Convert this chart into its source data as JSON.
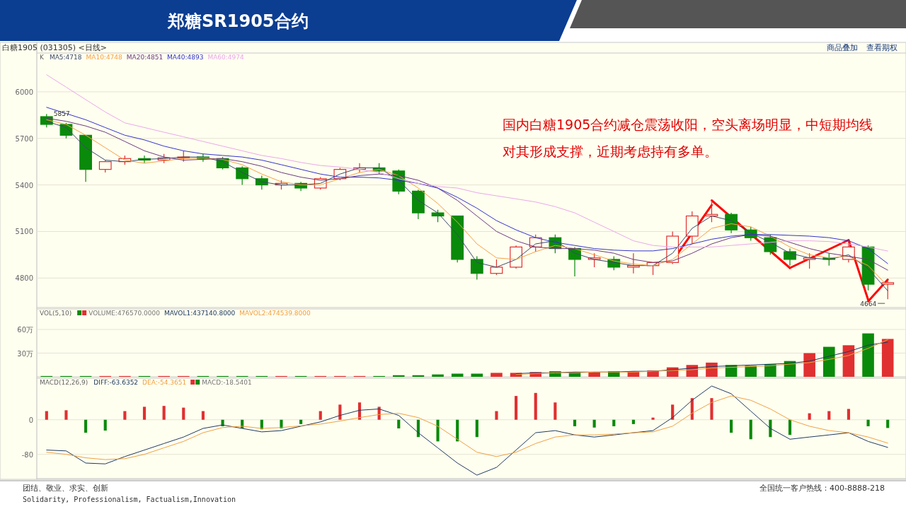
{
  "chart_data": [
    {
      "type": "candlestick",
      "title": "郑糖SR1905合约",
      "subtitle": "白糖1905 (031305) <日线>",
      "legend_title": "K",
      "legend": "top left",
      "grid": "y",
      "categories": [
        null,
        null,
        null,
        null,
        null,
        null,
        null,
        null,
        null,
        null,
        null,
        null,
        null,
        null,
        null,
        null,
        null,
        null,
        null,
        null,
        null,
        null,
        null,
        null,
        null,
        null,
        null,
        null,
        null,
        null,
        null,
        null,
        null,
        null,
        null,
        null,
        null,
        null,
        null,
        null,
        null,
        null,
        null,
        null
      ],
      "ohlc": [
        [
          5840,
          5857,
          5770,
          5790
        ],
        [
          5790,
          5800,
          5700,
          5720
        ],
        [
          5720,
          5720,
          5420,
          5500
        ],
        [
          5500,
          5560,
          5480,
          5550
        ],
        [
          5550,
          5590,
          5530,
          5570
        ],
        [
          5570,
          5590,
          5540,
          5560
        ],
        [
          5560,
          5600,
          5540,
          5575
        ],
        [
          5575,
          5620,
          5550,
          5580
        ],
        [
          5580,
          5600,
          5550,
          5570
        ],
        [
          5570,
          5580,
          5500,
          5510
        ],
        [
          5510,
          5520,
          5400,
          5440
        ],
        [
          5440,
          5460,
          5370,
          5400
        ],
        [
          5400,
          5430,
          5370,
          5410
        ],
        [
          5410,
          5420,
          5360,
          5380
        ],
        [
          5380,
          5450,
          5370,
          5440
        ],
        [
          5440,
          5510,
          5430,
          5500
        ],
        [
          5500,
          5540,
          5480,
          5510
        ],
        [
          5510,
          5540,
          5470,
          5490
        ],
        [
          5490,
          5500,
          5340,
          5360
        ],
        [
          5360,
          5370,
          5180,
          5220
        ],
        [
          5220,
          5240,
          5160,
          5200
        ],
        [
          5200,
          5200,
          4900,
          4920
        ],
        [
          4920,
          4940,
          4790,
          4830
        ],
        [
          4830,
          4920,
          4820,
          4870
        ],
        [
          4870,
          5010,
          4860,
          5000
        ],
        [
          5000,
          5080,
          4970,
          5060
        ],
        [
          5060,
          5080,
          4960,
          4990
        ],
        [
          4990,
          5000,
          4810,
          4920
        ],
        [
          4920,
          4960,
          4870,
          4930
        ],
        [
          4920,
          4940,
          4850,
          4870
        ],
        [
          4870,
          4960,
          4830,
          4880
        ],
        [
          4880,
          4900,
          4820,
          4900
        ],
        [
          4900,
          5100,
          4890,
          5070
        ],
        [
          5070,
          5230,
          5020,
          5200
        ],
        [
          5200,
          5290,
          5160,
          5210
        ],
        [
          5210,
          5220,
          5090,
          5110
        ],
        [
          5110,
          5130,
          5040,
          5060
        ],
        [
          5060,
          5080,
          4950,
          4970
        ],
        [
          4970,
          4990,
          4880,
          4920
        ],
        [
          4920,
          4960,
          4860,
          4930
        ],
        [
          4930,
          4960,
          4880,
          4920
        ],
        [
          4920,
          5040,
          4900,
          5000
        ],
        [
          5000,
          5010,
          4720,
          4760
        ],
        [
          4760,
          4790,
          4664,
          4770
        ]
      ],
      "series": [
        {
          "name": "MA5:4718",
          "type": "line",
          "color": "#3b4a6b",
          "values": [
            5810,
            5770,
            5640,
            5560,
            5550,
            5565,
            5570,
            5580,
            5580,
            5550,
            5480,
            5420,
            5400,
            5400,
            5410,
            5470,
            5510,
            5510,
            5430,
            5300,
            5220,
            5080,
            4900,
            4870,
            4920,
            5020,
            5040,
            4960,
            4920,
            4900,
            4880,
            4880,
            4960,
            5120,
            5200,
            5170,
            5090,
            5030,
            4960,
            4930,
            4920,
            4950,
            4860,
            4718
          ]
        },
        {
          "name": "MA10:4748",
          "type": "line",
          "color": "#f5a142",
          "values": [
            5820,
            5790,
            5720,
            5640,
            5560,
            5540,
            5555,
            5570,
            5575,
            5565,
            5530,
            5470,
            5420,
            5400,
            5400,
            5440,
            5480,
            5500,
            5460,
            5380,
            5280,
            5160,
            5020,
            4930,
            4920,
            4970,
            5010,
            4990,
            4950,
            4910,
            4890,
            4880,
            4920,
            5020,
            5120,
            5150,
            5130,
            5070,
            5000,
            4950,
            4930,
            4940,
            4880,
            4748
          ]
        },
        {
          "name": "MA20:4851",
          "type": "line",
          "color": "#6a3a7f",
          "values": [
            5830,
            5810,
            5780,
            5740,
            5680,
            5620,
            5580,
            5560,
            5565,
            5570,
            5550,
            5520,
            5480,
            5450,
            5430,
            5440,
            5460,
            5470,
            5460,
            5430,
            5380,
            5300,
            5200,
            5100,
            5040,
            5000,
            4990,
            4990,
            4980,
            4960,
            4920,
            4900,
            4910,
            4960,
            5020,
            5060,
            5080,
            5070,
            5030,
            4990,
            4960,
            4940,
            4920,
            4851
          ]
        },
        {
          "name": "MA40:4893",
          "type": "line",
          "color": "#3333cc",
          "values": [
            5900,
            5860,
            5820,
            5770,
            5720,
            5690,
            5650,
            5620,
            5600,
            5590,
            5580,
            5560,
            5530,
            5500,
            5470,
            5450,
            5450,
            5445,
            5430,
            5410,
            5380,
            5320,
            5250,
            5170,
            5110,
            5060,
            5030,
            5010,
            4990,
            4980,
            4975,
            4975,
            4990,
            5020,
            5050,
            5070,
            5080,
            5080,
            5075,
            5070,
            5060,
            5040,
            4990,
            4893
          ]
        },
        {
          "name": "MA60:4974",
          "type": "line",
          "color": "#e9a8ea",
          "values": [
            6110,
            6030,
            5950,
            5870,
            5800,
            5770,
            5740,
            5710,
            5680,
            5650,
            5620,
            5590,
            5570,
            5545,
            5525,
            5515,
            5500,
            5480,
            5440,
            5410,
            5390,
            5380,
            5350,
            5330,
            5310,
            5290,
            5260,
            5220,
            5160,
            5100,
            5040,
            5010,
            5000,
            5000,
            5000,
            5010,
            5020,
            5030,
            5040,
            5040,
            5035,
            5020,
            5000,
            4974
          ]
        },
        {
          "type": "line",
          "color": "#ff0000",
          "values": [
            null,
            null,
            null,
            null,
            null,
            null,
            null,
            null,
            null,
            null,
            null,
            null,
            null,
            null,
            null,
            null,
            null,
            null,
            null,
            null,
            null,
            null,
            null,
            null,
            null,
            null,
            null,
            null,
            null,
            null,
            null,
            null,
            4910,
            null,
            5270,
            null,
            null,
            null,
            null,
            null,
            null,
            null,
            null,
            null
          ]
        },
        {
          "type": "line",
          "color": "#ff0000",
          "values": [
            null,
            null,
            null,
            null,
            null,
            null,
            null,
            null,
            null,
            null,
            null,
            null,
            null,
            null,
            null,
            null,
            null,
            null,
            null,
            null,
            null,
            null,
            null,
            null,
            null,
            null,
            null,
            null,
            null,
            null,
            null,
            null,
            null,
            null,
            5300,
            null,
            null,
            null,
            4865,
            null,
            null,
            null,
            null,
            null
          ]
        },
        {
          "type": "line",
          "color": "#ff0000",
          "values": [
            null,
            null,
            null,
            null,
            null,
            null,
            null,
            null,
            null,
            null,
            null,
            null,
            null,
            null,
            null,
            null,
            null,
            null,
            null,
            null,
            null,
            null,
            null,
            null,
            null,
            null,
            null,
            null,
            null,
            null,
            null,
            null,
            null,
            null,
            null,
            null,
            null,
            null,
            4865,
            null,
            null,
            5045,
            4660,
            null
          ]
        },
        {
          "type": "line",
          "color": "#ff0000",
          "values": [
            null,
            null,
            null,
            null,
            null,
            null,
            null,
            null,
            null,
            null,
            null,
            null,
            null,
            null,
            null,
            null,
            null,
            null,
            null,
            null,
            null,
            null,
            null,
            null,
            null,
            null,
            null,
            null,
            null,
            null,
            null,
            null,
            null,
            null,
            null,
            null,
            null,
            null,
            null,
            null,
            null,
            null,
            4650,
            4790
          ]
        }
      ],
      "ylim": [
        4610,
        6250
      ],
      "yticks": [
        4800,
        5100,
        5400,
        5700,
        6000
      ],
      "annotations": [
        "国内白糖1905合约减仓震荡收阳，空头离场明显，中短期均线对其形成支撑，近期考虑持有多单。",
        {
          "text": "5857",
          "y": 5857
        },
        {
          "text": "4664",
          "y": 4664
        },
        "商品叠加",
        "查看期权",
        "团结、敬业、求实、创新",
        "Solidarity, Professionalism, Factualism,Innovation",
        "全国统一客户热线：400-8888-218"
      ]
    },
    {
      "type": "bar",
      "legend_title": "VOL(5,10)",
      "legend": "top left",
      "grid": "y",
      "categories": [
        null,
        null,
        null,
        null,
        null,
        null,
        null,
        null,
        null,
        null,
        null,
        null,
        null,
        null,
        null,
        null,
        null,
        null,
        null,
        null,
        null,
        null,
        null,
        null,
        null,
        null,
        null,
        null,
        null,
        null,
        null,
        null,
        null,
        null,
        null,
        null,
        null,
        null,
        null,
        null,
        null,
        null,
        null,
        null
      ],
      "series": [
        {
          "name": "VOLUME:476570.0000",
          "values": [
            1,
            1,
            1,
            1,
            1,
            1,
            1,
            1,
            1,
            1,
            1,
            1,
            1,
            1,
            1,
            1,
            1,
            1,
            2,
            2,
            3,
            4,
            4,
            5,
            5,
            6,
            7,
            6,
            6,
            7,
            7,
            8,
            12,
            15,
            18,
            15,
            14,
            16,
            20,
            30,
            38,
            40,
            55,
            48
          ],
          "colors": [
            "#0a8a0a",
            "#0a8a0a",
            "#0a8a0a",
            "#e03030",
            "#e03030",
            "#0a8a0a",
            "#e03030",
            "#e03030",
            "#0a8a0a",
            "#0a8a0a",
            "#0a8a0a",
            "#0a8a0a",
            "#e03030",
            "#0a8a0a",
            "#e03030",
            "#e03030",
            "#e03030",
            "#0a8a0a",
            "#0a8a0a",
            "#0a8a0a",
            "#0a8a0a",
            "#0a8a0a",
            "#0a8a0a",
            "#e03030",
            "#e03030",
            "#e03030",
            "#0a8a0a",
            "#0a8a0a",
            "#e03030",
            "#0a8a0a",
            "#e03030",
            "#e03030",
            "#e03030",
            "#e03030",
            "#e03030",
            "#0a8a0a",
            "#0a8a0a",
            "#0a8a0a",
            "#0a8a0a",
            "#e03030",
            "#0a8a0a",
            "#e03030",
            "#0a8a0a",
            "#e03030"
          ]
        },
        {
          "name": "MAVOL1:437140.8000",
          "type": "line",
          "color": "#1f3a60",
          "values": [
            null,
            null,
            null,
            null,
            null,
            null,
            null,
            null,
            null,
            null,
            null,
            null,
            null,
            null,
            null,
            null,
            null,
            null,
            null,
            null,
            null,
            null,
            null,
            null,
            4,
            5,
            5,
            6,
            6,
            6,
            7,
            7,
            9,
            11,
            13,
            14,
            15,
            16,
            17,
            20,
            26,
            32,
            40,
            44
          ]
        },
        {
          "name": "MAVOL2:474539.8000",
          "type": "line",
          "color": "#f0a040",
          "values": [
            null,
            null,
            null,
            null,
            null,
            null,
            null,
            null,
            null,
            null,
            null,
            null,
            null,
            null,
            null,
            null,
            null,
            null,
            null,
            null,
            null,
            null,
            null,
            null,
            3,
            4,
            5,
            5,
            6,
            6,
            6,
            7,
            8,
            9,
            11,
            12,
            13,
            14,
            16,
            18,
            22,
            27,
            36,
            47
          ]
        }
      ],
      "ylim": [
        0,
        86
      ],
      "yticks": [
        {
          "value": 30,
          "label": "30万"
        },
        {
          "value": 60,
          "label": "60万"
        }
      ]
    },
    {
      "type": "bar",
      "legend_title": "MACD(12,26,9)",
      "legend": "top left",
      "grid": "y",
      "categories": [
        null,
        null,
        null,
        null,
        null,
        null,
        null,
        null,
        null,
        null,
        null,
        null,
        null,
        null,
        null,
        null,
        null,
        null,
        null,
        null,
        null,
        null,
        null,
        null,
        null,
        null,
        null,
        null,
        null,
        null,
        null,
        null,
        null,
        null,
        null,
        null,
        null,
        null,
        null,
        null,
        null,
        null,
        null,
        null
      ],
      "series": [
        {
          "name": "DIFF:-63.6352",
          "type": "line",
          "color": "#1f3a60",
          "values": [
            -70,
            -72,
            -100,
            -102,
            -85,
            -70,
            -55,
            -40,
            -20,
            -12,
            -20,
            -28,
            -25,
            -15,
            -5,
            10,
            22,
            25,
            10,
            -30,
            -65,
            -100,
            -128,
            -110,
            -70,
            -30,
            -25,
            -35,
            -40,
            -35,
            -30,
            -25,
            5,
            45,
            78,
            60,
            20,
            -20,
            -45,
            -40,
            -35,
            -30,
            -50,
            -64
          ]
        },
        {
          "name": "DEA:-54.3651",
          "type": "line",
          "color": "#f0a040",
          "values": [
            -75,
            -80,
            -88,
            -92,
            -90,
            -80,
            -65,
            -50,
            -30,
            -18,
            -15,
            -20,
            -18,
            -14,
            -10,
            -3,
            5,
            12,
            15,
            5,
            -15,
            -45,
            -75,
            -85,
            -75,
            -55,
            -40,
            -35,
            -35,
            -33,
            -30,
            -28,
            -15,
            15,
            40,
            55,
            45,
            25,
            0,
            -15,
            -25,
            -30,
            -40,
            -54
          ]
        },
        {
          "name": "MACD:-18.5401",
          "values": [
            20,
            22,
            -30,
            -25,
            20,
            30,
            32,
            28,
            20,
            -15,
            -20,
            -22,
            -20,
            -10,
            20,
            35,
            40,
            30,
            -20,
            -40,
            -50,
            -50,
            -40,
            20,
            55,
            62,
            40,
            -15,
            -18,
            -15,
            -10,
            5,
            35,
            50,
            50,
            -30,
            -45,
            -40,
            -35,
            15,
            20,
            25,
            -15,
            -19
          ],
          "colors": [
            "#e03030",
            "#e03030",
            "#0a8a0a",
            "#0a8a0a",
            "#e03030",
            "#e03030",
            "#e03030",
            "#e03030",
            "#e03030",
            "#0a8a0a",
            "#0a8a0a",
            "#0a8a0a",
            "#0a8a0a",
            "#0a8a0a",
            "#e03030",
            "#e03030",
            "#e03030",
            "#e03030",
            "#0a8a0a",
            "#0a8a0a",
            "#0a8a0a",
            "#0a8a0a",
            "#0a8a0a",
            "#e03030",
            "#e03030",
            "#e03030",
            "#e03030",
            "#0a8a0a",
            "#0a8a0a",
            "#0a8a0a",
            "#0a8a0a",
            "#e03030",
            "#e03030",
            "#e03030",
            "#e03030",
            "#0a8a0a",
            "#0a8a0a",
            "#0a8a0a",
            "#0a8a0a",
            "#e03030",
            "#e03030",
            "#e03030",
            "#0a8a0a",
            "#0a8a0a"
          ]
        }
      ],
      "ylim": [
        -136,
        96
      ],
      "yticks": [
        -80,
        0
      ]
    }
  ]
}
